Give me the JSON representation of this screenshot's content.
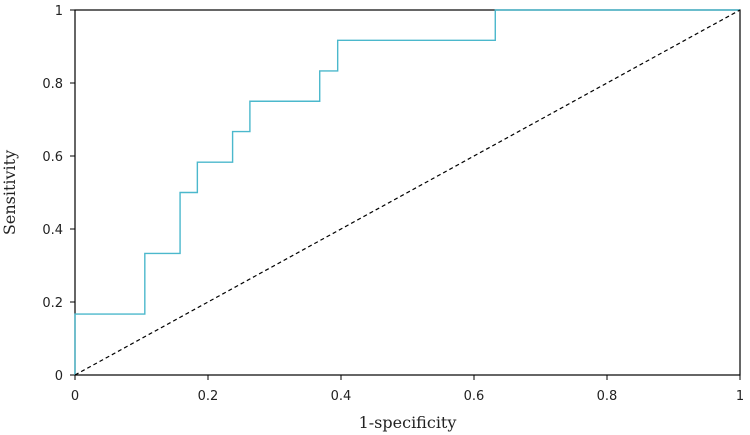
{
  "chart_data": {
    "type": "line",
    "title": "",
    "xlabel": "1-specificity",
    "ylabel": "Sensitivity",
    "xlim": [
      0,
      1
    ],
    "ylim": [
      0,
      1
    ],
    "grid": false,
    "xticks": [
      0,
      0.2,
      0.4,
      0.6,
      0.8,
      1
    ],
    "yticks": [
      0,
      0.2,
      0.4,
      0.6,
      0.8,
      1
    ],
    "xtick_labels": [
      "0",
      "0.2",
      "0.4",
      "0.6",
      "0.8",
      "1"
    ],
    "ytick_labels": [
      "0",
      "0.2",
      "0.4",
      "0.6",
      "0.8",
      "1"
    ],
    "series": [
      {
        "style": "step",
        "color": "#4bb8cc",
        "x": [
          0,
          0,
          0.105,
          0.105,
          0.158,
          0.158,
          0.184,
          0.184,
          0.237,
          0.237,
          0.263,
          0.263,
          0.368,
          0.368,
          0.395,
          0.395,
          0.632,
          0.632,
          1
        ],
        "y": [
          0,
          0.167,
          0.167,
          0.333,
          0.333,
          0.5,
          0.5,
          0.583,
          0.583,
          0.667,
          0.667,
          0.75,
          0.75,
          0.833,
          0.833,
          0.917,
          0.917,
          1,
          1
        ]
      },
      {
        "style": "dashed",
        "color": "#000000",
        "x": [
          0,
          1
        ],
        "y": [
          0,
          1
        ]
      }
    ]
  }
}
